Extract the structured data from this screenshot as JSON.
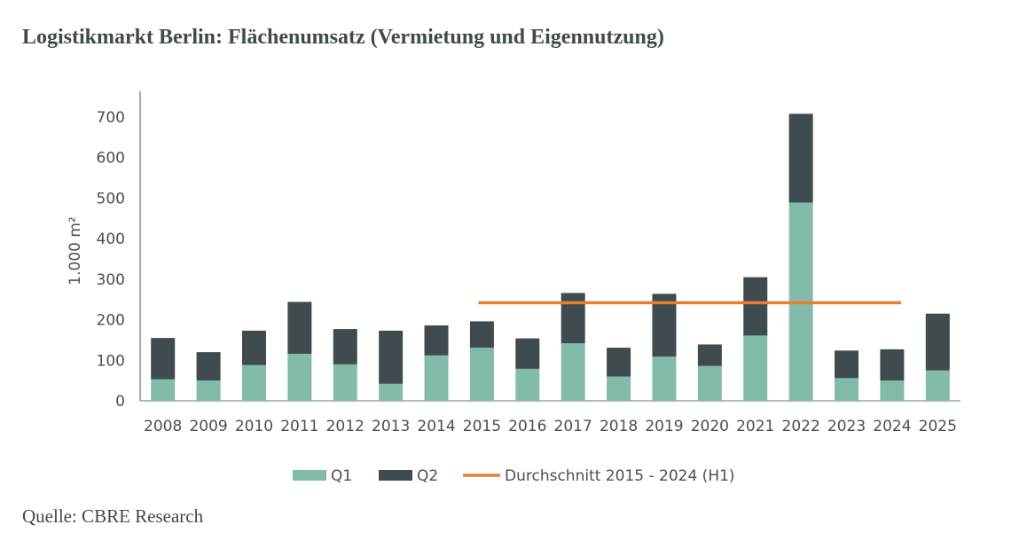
{
  "title": "Logistikmarkt Berlin: Flächenumsatz (Vermietung und Eigennutzung)",
  "source": "Quelle: CBRE Research",
  "chart_data": {
    "type": "bar",
    "stacked": true,
    "categories": [
      "2008",
      "2009",
      "2010",
      "2011",
      "2012",
      "2013",
      "2014",
      "2015",
      "2016",
      "2017",
      "2018",
      "2019",
      "2020",
      "2021",
      "2022",
      "2023",
      "2024",
      "2025"
    ],
    "series": [
      {
        "name": "Q1",
        "color": "#82bba9",
        "values": [
          53,
          50,
          88,
          116,
          90,
          42,
          112,
          131,
          79,
          142,
          60,
          109,
          86,
          161,
          489,
          56,
          50,
          75
        ]
      },
      {
        "name": "Q2",
        "color": "#3f4b4e",
        "values": [
          102,
          70,
          85,
          128,
          87,
          131,
          74,
          65,
          75,
          124,
          71,
          155,
          53,
          144,
          219,
          68,
          77,
          140
        ]
      }
    ],
    "lines": [
      {
        "name": "Durchschnitt 2015 - 2024 (H1)",
        "color": "#e67e35",
        "value": 242,
        "from": "2015",
        "to": "2024"
      }
    ],
    "ylabel": "1.000 m²",
    "xlabel": "",
    "ylim": [
      0,
      700
    ],
    "yticks": [
      0,
      100,
      200,
      300,
      400,
      500,
      600,
      700
    ],
    "grid": false,
    "legend": "bottom"
  }
}
